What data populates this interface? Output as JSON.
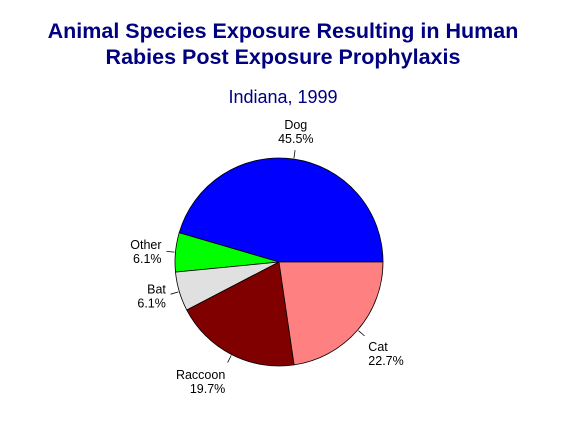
{
  "chart_data": {
    "type": "pie",
    "title_line1": "Animal Species Exposure Resulting in Human",
    "title_line2": "Rabies Post Exposure Prophylaxis",
    "subtitle": "Indiana, 1999",
    "slices": [
      {
        "label": "Dog",
        "value": 45.5,
        "display": "45.5%",
        "color": "#0000ff"
      },
      {
        "label": "Other",
        "value": 6.1,
        "display": "6.1%",
        "color": "#00ff00"
      },
      {
        "label": "Bat",
        "value": 6.1,
        "display": "6.1%",
        "color": "#e0e0e0"
      },
      {
        "label": "Raccoon",
        "value": 19.7,
        "display": "19.7%",
        "color": "#800000"
      },
      {
        "label": "Cat",
        "value": 22.7,
        "display": "22.7%",
        "color": "#ff8080"
      }
    ],
    "start_angle_deg": 0,
    "direction": "counterclockwise-from-3-oclock",
    "legend": "none",
    "outline_color": "#000000"
  }
}
